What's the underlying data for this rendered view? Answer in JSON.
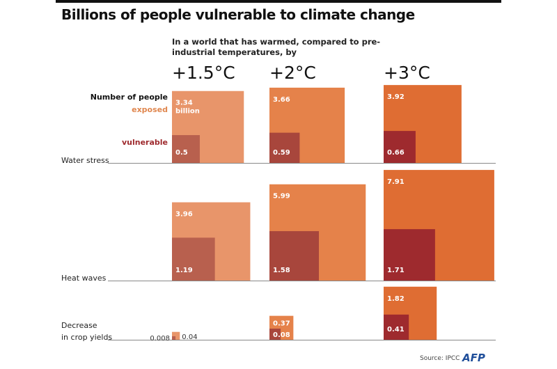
{
  "chart_data": {
    "type": "proportional-area squares",
    "title": "Billions of people vulnerable to climate change",
    "subtitle": "In a world that has warmed, compared to pre-industrial temperatures, by",
    "categories": [
      "+1.5°C",
      "+2°C",
      "+3°C"
    ],
    "legend": {
      "header": "Number of people",
      "exposed": "exposed",
      "vulnerable": "vulnerable",
      "unit_label": "billion"
    },
    "rows": [
      {
        "label": "Water stress",
        "exposed": [
          3.34,
          3.66,
          3.92
        ],
        "vulnerable": [
          0.5,
          0.59,
          0.66
        ]
      },
      {
        "label": "Heat waves",
        "exposed": [
          3.96,
          5.99,
          7.91
        ],
        "vulnerable": [
          1.19,
          1.58,
          1.71
        ]
      },
      {
        "label": "Decrease in crop yields",
        "label_lines": [
          "Decrease",
          "in crop yields"
        ],
        "exposed": [
          0.04,
          0.37,
          1.82
        ],
        "vulnerable": [
          0.008,
          0.08,
          0.41
        ]
      }
    ],
    "colors": {
      "exposed": [
        "#e8956a",
        "#e5824a",
        "#df6d33"
      ],
      "vulnerable": [
        "#b8604e",
        "#a8463c",
        "#9e2a2e"
      ],
      "legend_exposed": "#e0874f",
      "legend_vulnerable": "#9e2a2e"
    }
  },
  "footer": {
    "source": "Source: IPCC",
    "logo": "AFP"
  }
}
